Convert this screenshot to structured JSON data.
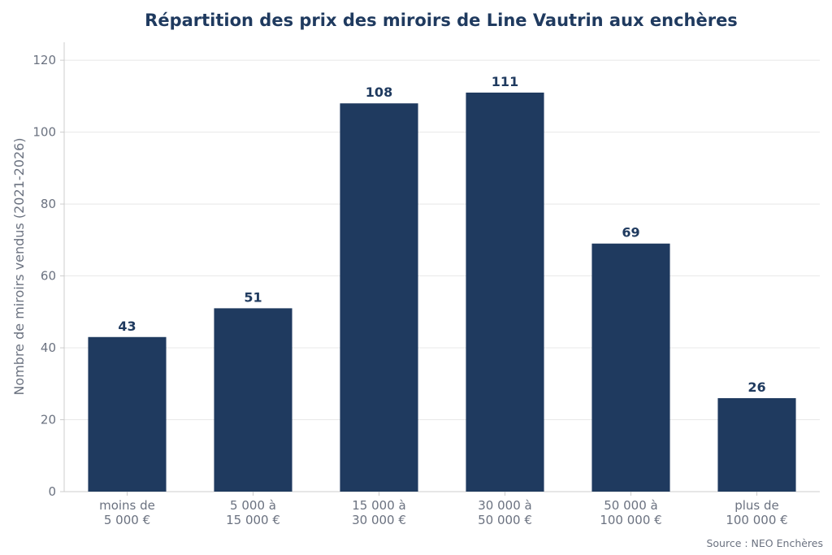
{
  "colors": {
    "bar": "#1f3a5f",
    "title": "#1f3a5f",
    "data_label": "#1f3a5f",
    "tick_text": "#6b7280",
    "axis_text": "#6b7280",
    "grid": "#e8e8e8",
    "axis_line": "#cccccc",
    "source_text": "#6b7280"
  },
  "chart_data": {
    "type": "bar",
    "title": "Répartition des prix des miroirs de Line Vautrin aux enchères",
    "xlabel": "",
    "ylabel": "Nombre de miroirs vendus (2021-2026)",
    "categories": [
      [
        "moins de",
        "5 000 €"
      ],
      [
        "5 000 à",
        "15 000 €"
      ],
      [
        "15 000 à",
        "30 000 €"
      ],
      [
        "30 000 à",
        "50 000 €"
      ],
      [
        "50 000 à",
        "100 000 €"
      ],
      [
        "plus de",
        "100 000 €"
      ]
    ],
    "values": [
      43,
      51,
      108,
      111,
      69,
      26
    ],
    "data_labels": [
      "43",
      "51",
      "108",
      "111",
      "69",
      "26"
    ],
    "ylim": [
      0,
      125
    ],
    "yticks": [
      0,
      20,
      40,
      60,
      80,
      100,
      120
    ],
    "grid": true,
    "legend": false
  },
  "source": "Source : NEO Enchères"
}
